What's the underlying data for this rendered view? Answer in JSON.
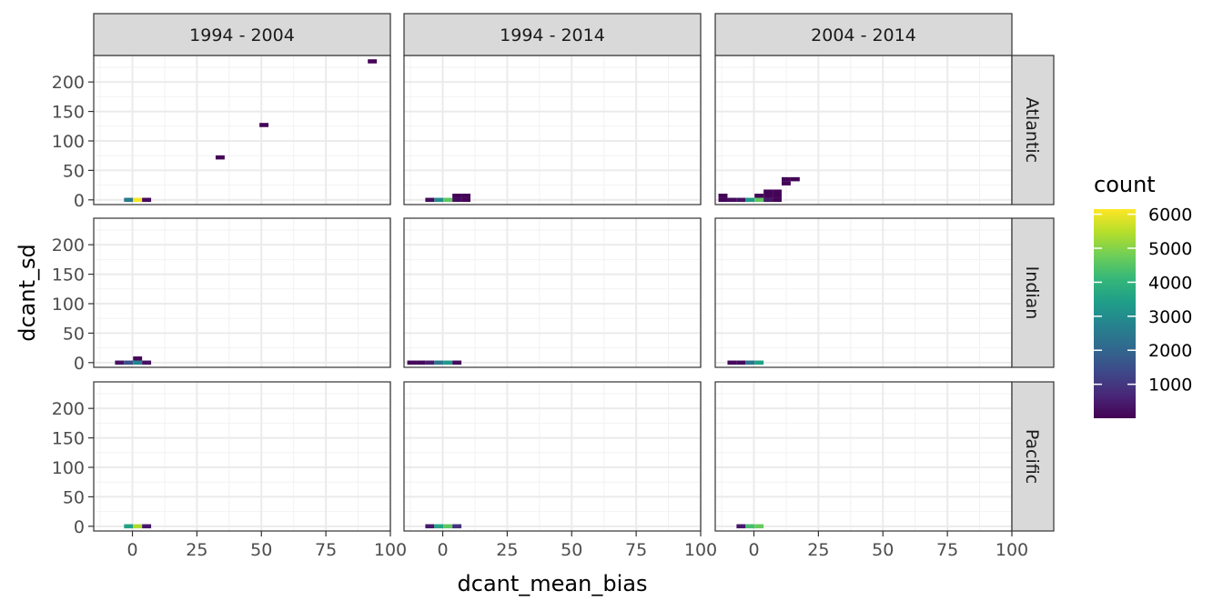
{
  "chart_data": {
    "type": "heatmap",
    "xlabel": "dcant_mean_bias",
    "ylabel": "dcant_sd",
    "xlim": [
      -15,
      100
    ],
    "ylim": [
      -8,
      245
    ],
    "x_ticks": [
      0,
      25,
      50,
      75,
      100
    ],
    "x_tick_labels": [
      "0",
      "25",
      "50",
      "75",
      "100"
    ],
    "y_ticks": [
      0,
      50,
      100,
      150,
      200
    ],
    "y_tick_labels": [
      "0",
      "50",
      "100",
      "150",
      "200"
    ],
    "grid": true,
    "bin_width": 3.5,
    "bin_height": 7,
    "col_facets": [
      "1994 - 2004",
      "1994 - 2014",
      "2004 - 2014"
    ],
    "row_facets": [
      "Atlantic",
      "Indian",
      "Pacific"
    ],
    "legend": {
      "title": "count",
      "placement": "right",
      "colorscale": "viridis",
      "range": [
        1,
        6150
      ],
      "ticks": [
        1000,
        2000,
        3000,
        4000,
        5000,
        6000
      ],
      "tick_labels": [
        "1000",
        "2000",
        "3000",
        "4000",
        "5000",
        "6000"
      ]
    },
    "panels": [
      {
        "row": "Atlantic",
        "col": "1994 - 2004",
        "cells": [
          {
            "x": -1.5,
            "y": 0,
            "count": 2500
          },
          {
            "x": 2,
            "y": 0,
            "count": 6100
          },
          {
            "x": 5.5,
            "y": 0,
            "count": 150
          },
          {
            "x": 34,
            "y": 72,
            "count": 30
          },
          {
            "x": 51,
            "y": 127,
            "count": 30
          },
          {
            "x": 93,
            "y": 235,
            "count": 30
          }
        ]
      },
      {
        "row": "Atlantic",
        "col": "1994 - 2014",
        "cells": [
          {
            "x": -5,
            "y": 0,
            "count": 200
          },
          {
            "x": -1.5,
            "y": 0,
            "count": 3000
          },
          {
            "x": 2,
            "y": 0,
            "count": 4600
          },
          {
            "x": 5.5,
            "y": 0,
            "count": 150
          },
          {
            "x": 9,
            "y": 0,
            "count": 60
          },
          {
            "x": 5.5,
            "y": 7,
            "count": 60
          },
          {
            "x": 9,
            "y": 7,
            "count": 60
          }
        ]
      },
      {
        "row": "Atlantic",
        "col": "2004 - 2014",
        "cells": [
          {
            "x": -12,
            "y": 0,
            "count": 80
          },
          {
            "x": -8.5,
            "y": 0,
            "count": 200
          },
          {
            "x": -5,
            "y": 0,
            "count": 300
          },
          {
            "x": -1.5,
            "y": 0,
            "count": 3300
          },
          {
            "x": 2,
            "y": 0,
            "count": 4600
          },
          {
            "x": 5.5,
            "y": 0,
            "count": 400
          },
          {
            "x": 9,
            "y": 0,
            "count": 60
          },
          {
            "x": -12,
            "y": 7,
            "count": 60
          },
          {
            "x": 2,
            "y": 7,
            "count": 60
          },
          {
            "x": 5.5,
            "y": 7,
            "count": 60
          },
          {
            "x": 9,
            "y": 7,
            "count": 60
          },
          {
            "x": 5.5,
            "y": 14,
            "count": 60
          },
          {
            "x": 9,
            "y": 14,
            "count": 60
          },
          {
            "x": 12.5,
            "y": 28,
            "count": 60
          },
          {
            "x": 12.5,
            "y": 35,
            "count": 60
          },
          {
            "x": 16,
            "y": 35,
            "count": 60
          }
        ]
      },
      {
        "row": "Indian",
        "col": "1994 - 2004",
        "cells": [
          {
            "x": -5,
            "y": 0,
            "count": 300
          },
          {
            "x": -1.5,
            "y": 0,
            "count": 1500
          },
          {
            "x": 2,
            "y": 0,
            "count": 2800
          },
          {
            "x": 5.5,
            "y": 0,
            "count": 300
          },
          {
            "x": 2,
            "y": 7,
            "count": 80
          }
        ]
      },
      {
        "row": "Indian",
        "col": "1994 - 2014",
        "cells": [
          {
            "x": -12,
            "y": 0,
            "count": 150
          },
          {
            "x": -8.5,
            "y": 0,
            "count": 150
          },
          {
            "x": -5,
            "y": 0,
            "count": 500
          },
          {
            "x": -1.5,
            "y": 0,
            "count": 2400
          },
          {
            "x": 2,
            "y": 0,
            "count": 3300
          },
          {
            "x": 5.5,
            "y": 0,
            "count": 200
          }
        ]
      },
      {
        "row": "Indian",
        "col": "2004 - 2014",
        "cells": [
          {
            "x": -8.5,
            "y": 0,
            "count": 150
          },
          {
            "x": -5,
            "y": 0,
            "count": 200
          },
          {
            "x": -1.5,
            "y": 0,
            "count": 2400
          },
          {
            "x": 2,
            "y": 0,
            "count": 3500
          }
        ]
      },
      {
        "row": "Pacific",
        "col": "1994 - 2004",
        "cells": [
          {
            "x": -1.5,
            "y": 0,
            "count": 3500
          },
          {
            "x": 2,
            "y": 0,
            "count": 5400
          },
          {
            "x": 5.5,
            "y": 0,
            "count": 400
          }
        ]
      },
      {
        "row": "Pacific",
        "col": "1994 - 2014",
        "cells": [
          {
            "x": -5,
            "y": 0,
            "count": 400
          },
          {
            "x": -1.5,
            "y": 0,
            "count": 3600
          },
          {
            "x": 2,
            "y": 0,
            "count": 4600
          },
          {
            "x": 5.5,
            "y": 0,
            "count": 900
          }
        ]
      },
      {
        "row": "Pacific",
        "col": "2004 - 2014",
        "cells": [
          {
            "x": -5,
            "y": 0,
            "count": 400
          },
          {
            "x": -1.5,
            "y": 0,
            "count": 4300
          },
          {
            "x": 2,
            "y": 0,
            "count": 4700
          }
        ]
      }
    ]
  }
}
